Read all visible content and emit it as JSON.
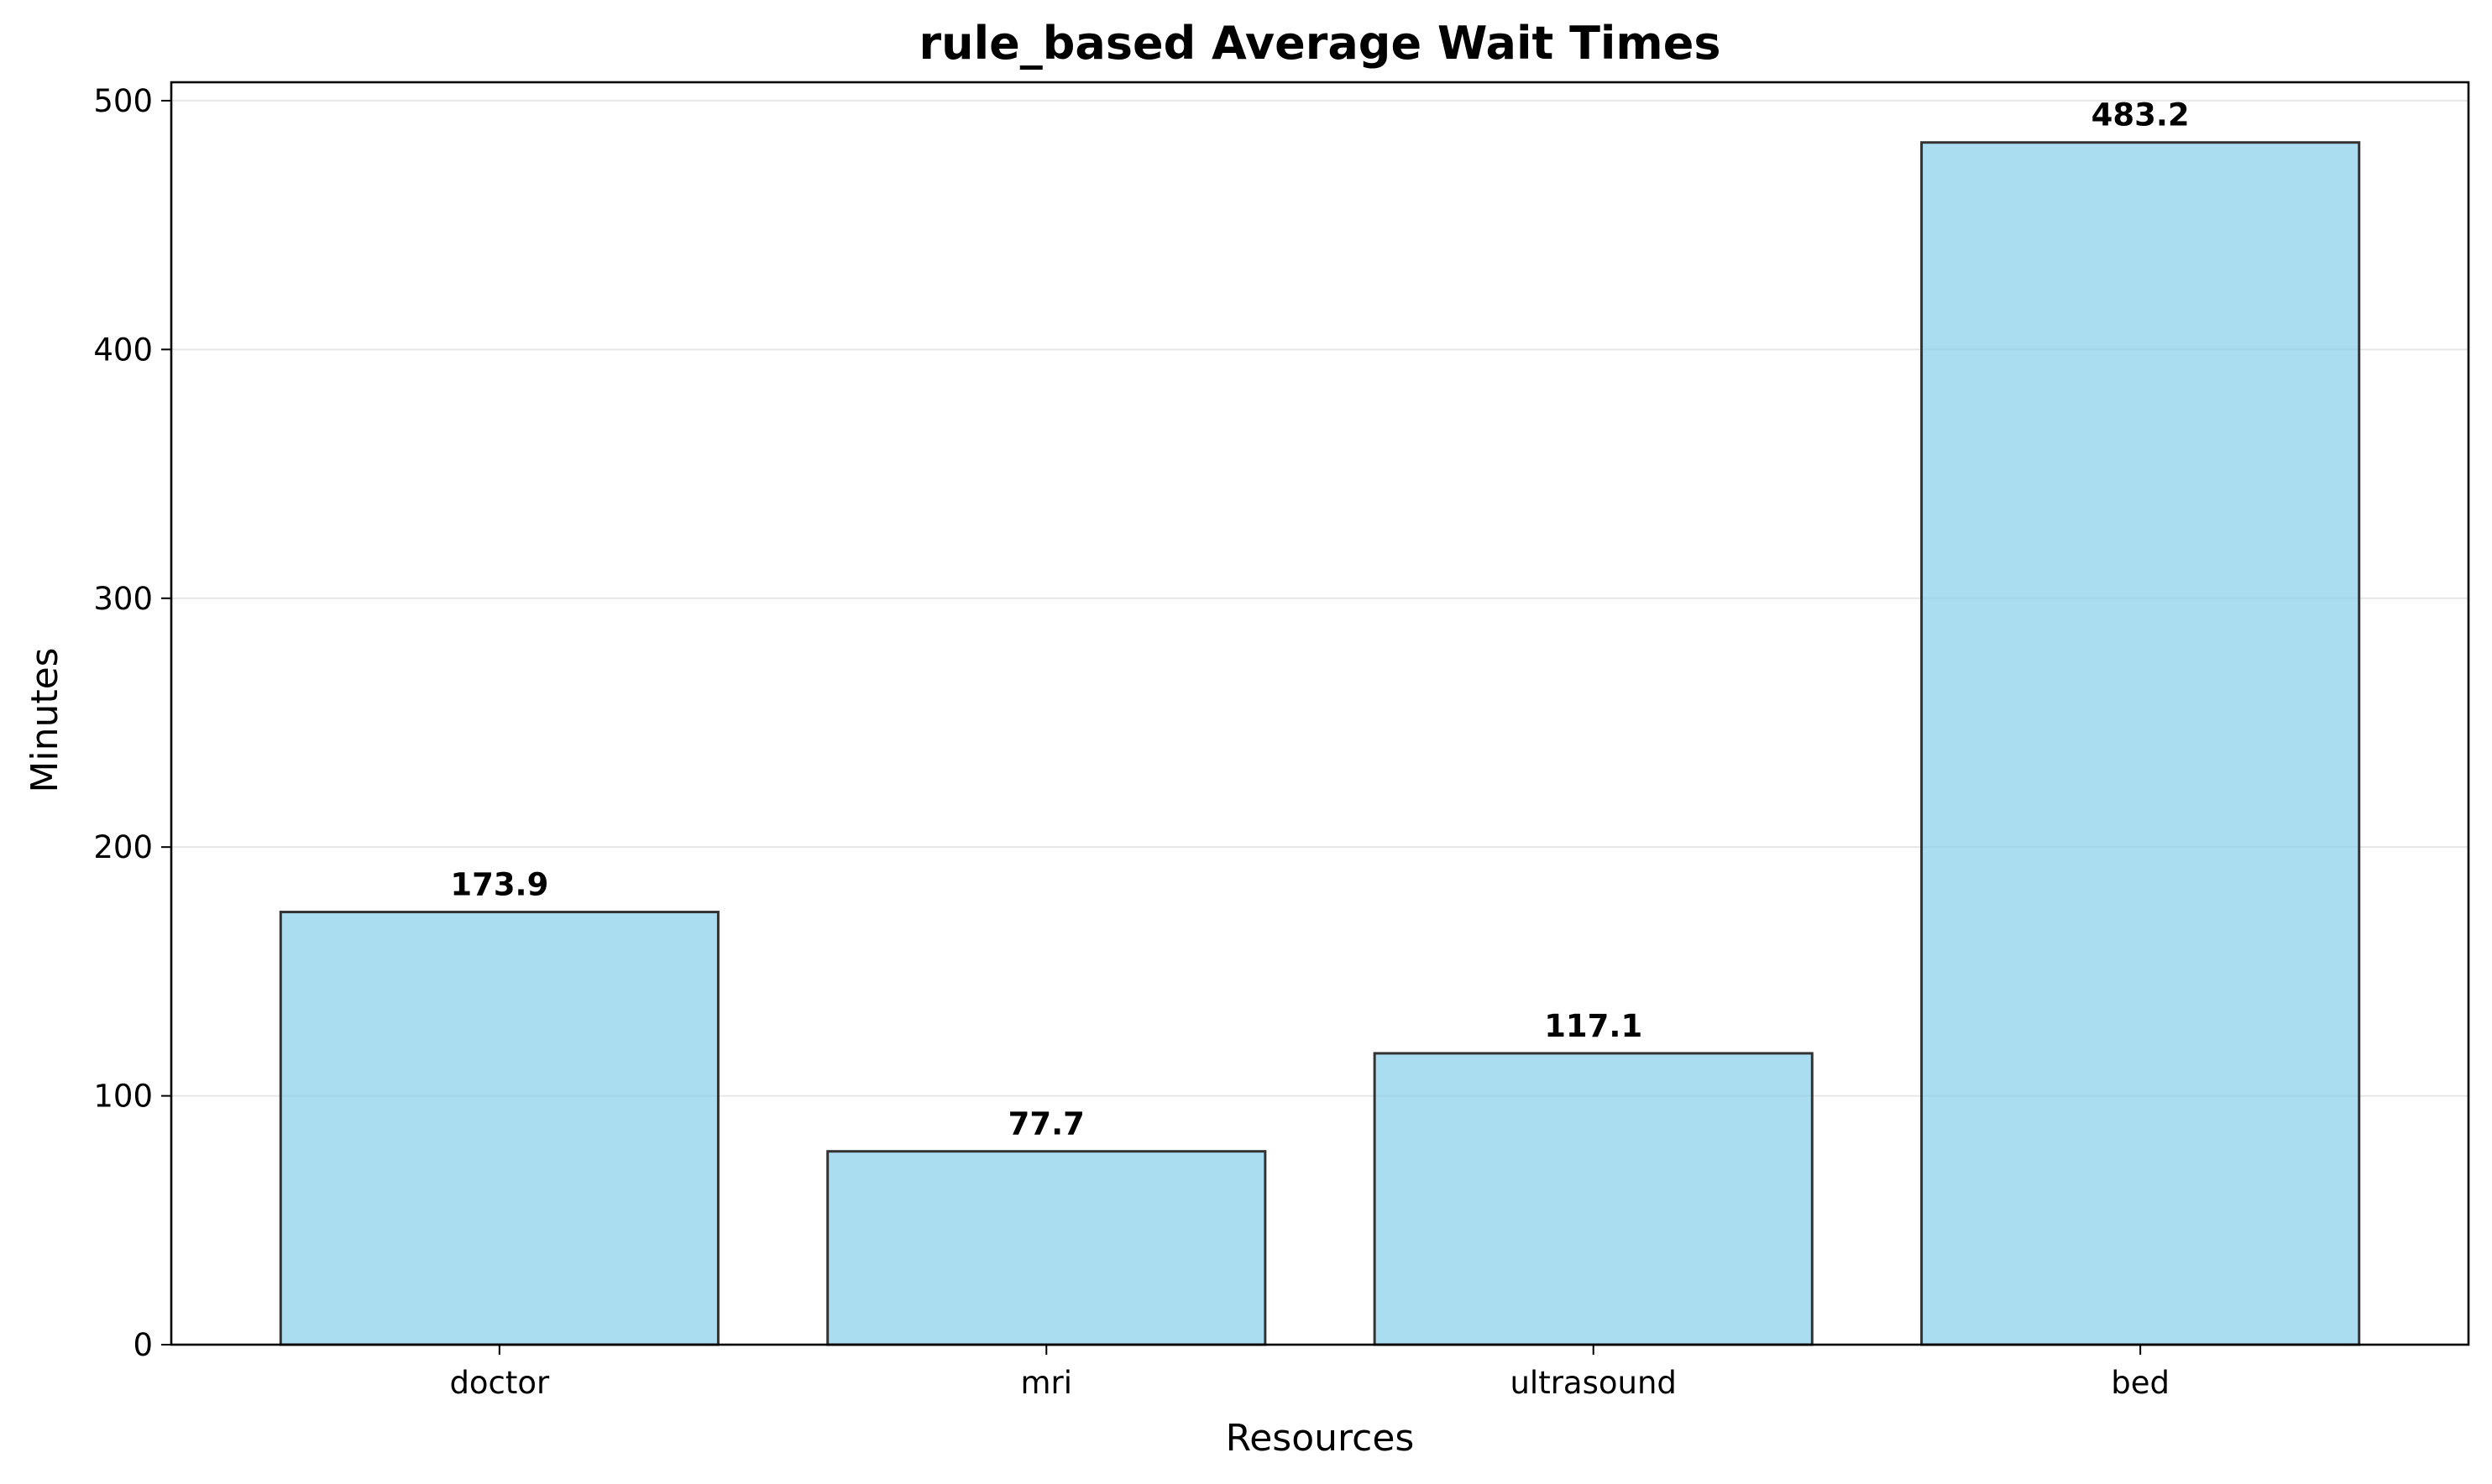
{
  "chart_data": {
    "type": "bar",
    "title": "rule_based Average Wait Times",
    "xlabel": "Resources",
    "ylabel": "Minutes",
    "categories": [
      "doctor",
      "mri",
      "ultrasound",
      "bed"
    ],
    "values": [
      173.9,
      77.7,
      117.1,
      483.2
    ],
    "data_labels": [
      "173.9",
      "77.7",
      "117.1",
      "483.2"
    ],
    "ylim": [
      0,
      507.4
    ],
    "yticks": [
      0,
      100,
      200,
      300,
      400,
      500
    ],
    "ytick_labels": [
      "0",
      "100",
      "200",
      "300",
      "400",
      "500"
    ],
    "grid": "y",
    "legend": "none",
    "bar_color": "#87ceeb",
    "bar_edge_color": "#333333",
    "grid_color": "#e6e6e6"
  }
}
